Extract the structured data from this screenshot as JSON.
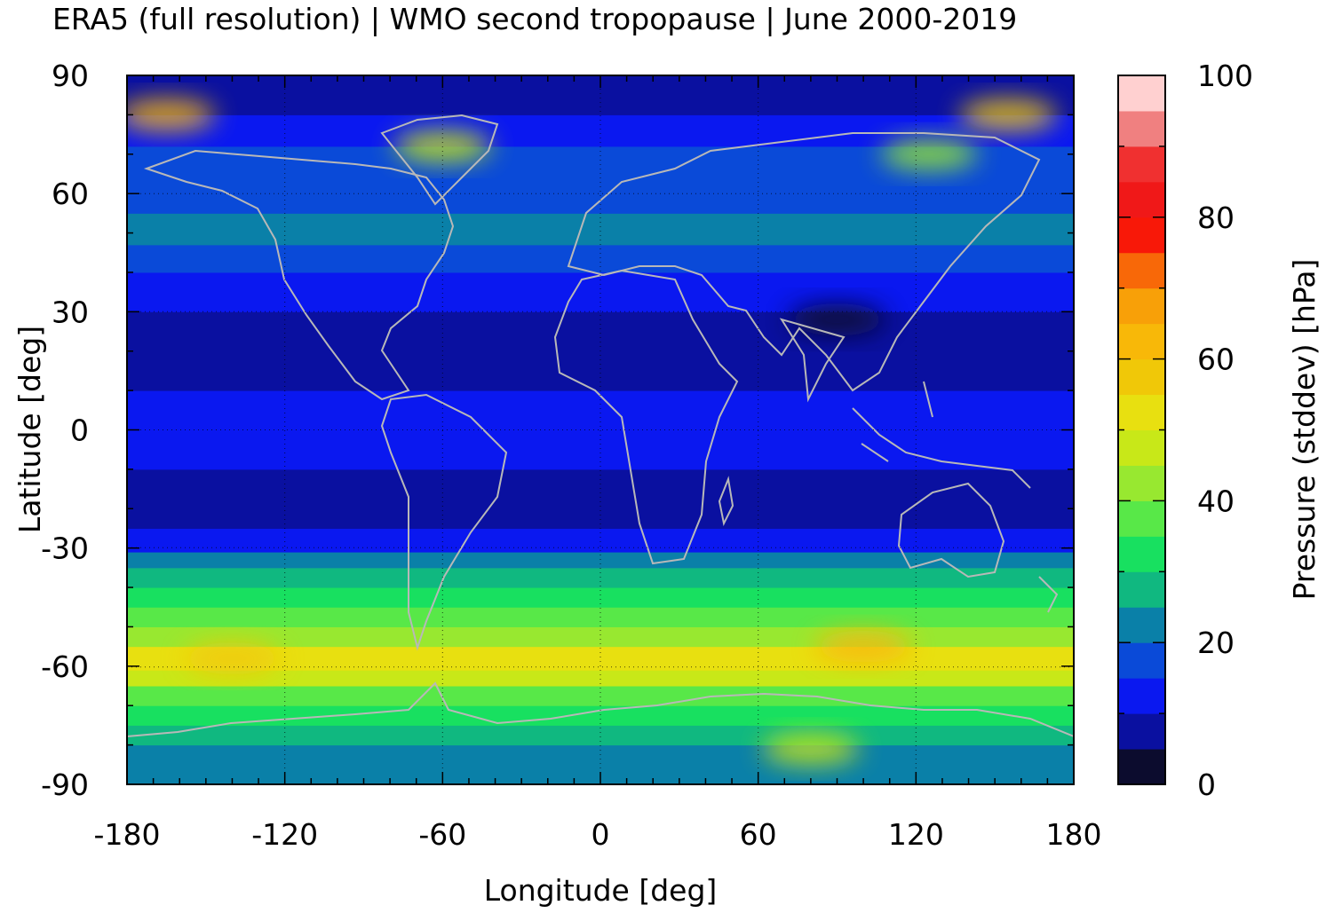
{
  "chart_data": {
    "type": "heatmap",
    "title": "ERA5 (full resolution) | WMO second tropopause | June 2000-2019",
    "xlabel": "Longitude [deg]",
    "ylabel": "Latitude [deg]",
    "xlim": [
      -180,
      180
    ],
    "ylim": [
      -90,
      90
    ],
    "x_ticks": [
      -180,
      -120,
      -60,
      0,
      60,
      120,
      180
    ],
    "y_ticks": [
      -90,
      -60,
      -30,
      0,
      30,
      60,
      90
    ],
    "x_tick_labels": [
      "-180",
      "-120",
      "-60",
      "0",
      "60",
      "120",
      "180"
    ],
    "y_tick_labels": [
      "-90",
      "-60",
      "-30",
      "0",
      "30",
      "60",
      "90"
    ],
    "grid": true,
    "colorbar": {
      "label": "Pressure (stddev) [hPa]",
      "range": [
        0,
        100
      ],
      "ticks": [
        0,
        20,
        40,
        60,
        80,
        100
      ],
      "tick_labels": [
        "0",
        "20",
        "40",
        "60",
        "80",
        "100"
      ],
      "levels": [
        {
          "from": 0,
          "to": 5,
          "color": "#0c0c2e"
        },
        {
          "from": 5,
          "to": 10,
          "color": "#0a10a0"
        },
        {
          "from": 10,
          "to": 15,
          "color": "#0a18f0"
        },
        {
          "from": 15,
          "to": 20,
          "color": "#0a4ad8"
        },
        {
          "from": 20,
          "to": 25,
          "color": "#0a80a8"
        },
        {
          "from": 25,
          "to": 30,
          "color": "#10b880"
        },
        {
          "from": 30,
          "to": 35,
          "color": "#18e060"
        },
        {
          "from": 35,
          "to": 40,
          "color": "#58e848"
        },
        {
          "from": 40,
          "to": 45,
          "color": "#98e830"
        },
        {
          "from": 45,
          "to": 50,
          "color": "#c8e818"
        },
        {
          "from": 50,
          "to": 55,
          "color": "#e8e010"
        },
        {
          "from": 55,
          "to": 60,
          "color": "#f0c808"
        },
        {
          "from": 60,
          "to": 65,
          "color": "#f8b808"
        },
        {
          "from": 65,
          "to": 70,
          "color": "#f8a008"
        },
        {
          "from": 70,
          "to": 75,
          "color": "#f86808"
        },
        {
          "from": 75,
          "to": 80,
          "color": "#f81808"
        },
        {
          "from": 80,
          "to": 85,
          "color": "#f01818"
        },
        {
          "from": 85,
          "to": 90,
          "color": "#f03030"
        },
        {
          "from": 90,
          "to": 95,
          "color": "#f08080"
        },
        {
          "from": 95,
          "to": 100,
          "color": "#ffd0d0"
        }
      ]
    },
    "zonal_bands": [
      {
        "lat_from": -90,
        "lat_to": -80,
        "value": 22
      },
      {
        "lat_from": -80,
        "lat_to": -75,
        "value": 27
      },
      {
        "lat_from": -75,
        "lat_to": -70,
        "value": 33
      },
      {
        "lat_from": -70,
        "lat_to": -65,
        "value": 38
      },
      {
        "lat_from": -65,
        "lat_to": -61,
        "value": 45
      },
      {
        "lat_from": -61,
        "lat_to": -55,
        "value": 53
      },
      {
        "lat_from": -55,
        "lat_to": -50,
        "value": 44
      },
      {
        "lat_from": -50,
        "lat_to": -45,
        "value": 37
      },
      {
        "lat_from": -45,
        "lat_to": -40,
        "value": 32
      },
      {
        "lat_from": -40,
        "lat_to": -35,
        "value": 26
      },
      {
        "lat_from": -35,
        "lat_to": -31,
        "value": 21
      },
      {
        "lat_from": -31,
        "lat_to": -25,
        "value": 13
      },
      {
        "lat_from": -25,
        "lat_to": -10,
        "value": 7
      },
      {
        "lat_from": -10,
        "lat_to": 10,
        "value": 12
      },
      {
        "lat_from": 10,
        "lat_to": 30,
        "value": 7
      },
      {
        "lat_from": 30,
        "lat_to": 40,
        "value": 13
      },
      {
        "lat_from": 40,
        "lat_to": 47,
        "value": 17
      },
      {
        "lat_from": 47,
        "lat_to": 55,
        "value": 22
      },
      {
        "lat_from": 55,
        "lat_to": 62,
        "value": 18
      },
      {
        "lat_from": 62,
        "lat_to": 72,
        "value": 17
      },
      {
        "lat_from": 72,
        "lat_to": 80,
        "value": 13
      },
      {
        "lat_from": 80,
        "lat_to": 90,
        "value": 8
      }
    ],
    "hotspots": [
      {
        "lon": -60,
        "lat": 72,
        "value": 48
      },
      {
        "lon": -165,
        "lat": 80,
        "value": 60
      },
      {
        "lon": 155,
        "lat": 80,
        "value": 58
      },
      {
        "lon": 125,
        "lat": 70,
        "value": 40
      },
      {
        "lon": 100,
        "lat": -55,
        "value": 60
      },
      {
        "lon": -140,
        "lat": -58,
        "value": 58
      },
      {
        "lon": 80,
        "lat": -81,
        "value": 45
      },
      {
        "lon": 90,
        "lat": 28,
        "value": 3
      }
    ]
  }
}
